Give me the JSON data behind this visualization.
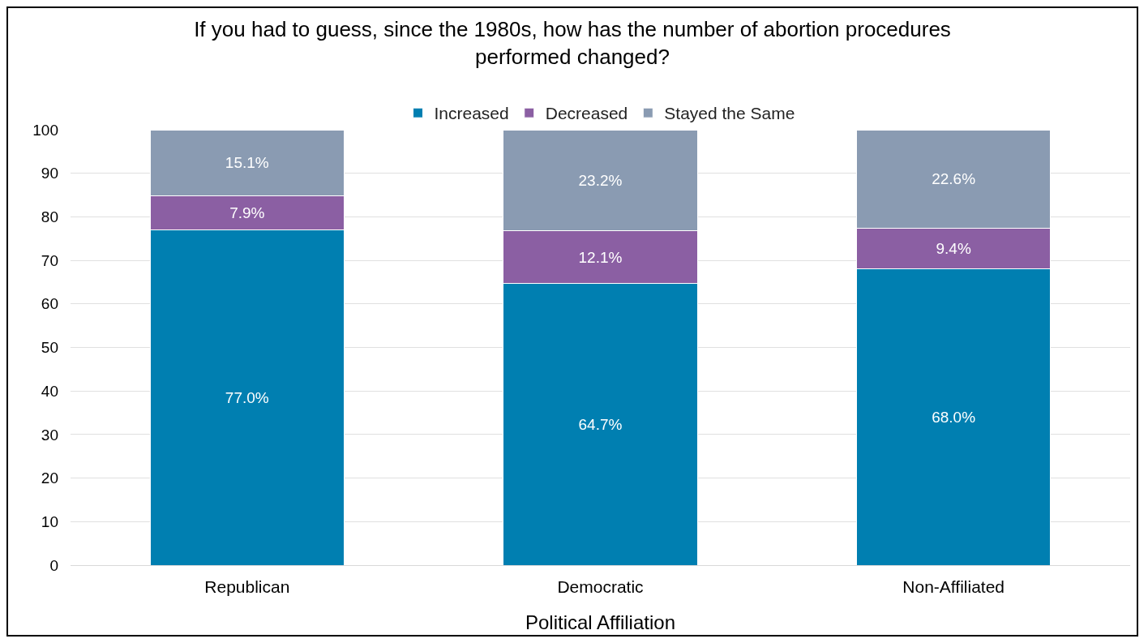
{
  "chart_data": {
    "type": "bar",
    "title": "If you had to guess, since the 1980s, how has the number of abortion procedures performed changed?",
    "xlabel": "Political Affiliation",
    "categories": [
      "Republican",
      "Democratic",
      "Non-Affiliated"
    ],
    "series": [
      {
        "name": "Increased",
        "color": "#007fb1",
        "values": [
          77.0,
          64.7,
          68.0
        ],
        "value_labels": [
          "77.0%",
          "64.7%",
          "68.0%"
        ]
      },
      {
        "name": "Decreased",
        "color": "#8b5fa3",
        "values": [
          7.9,
          12.1,
          9.4
        ],
        "value_labels": [
          "7.9%",
          "12.1%",
          "9.4%"
        ]
      },
      {
        "name": "Stayed the Same",
        "color": "#8a9bb2",
        "values": [
          15.1,
          23.2,
          22.6
        ],
        "value_labels": [
          "15.1%",
          "23.2%",
          "22.6%"
        ]
      }
    ],
    "stacked": true,
    "ylim": [
      0,
      100
    ],
    "yticks": [
      0,
      10,
      20,
      30,
      40,
      50,
      60,
      70,
      80,
      90,
      100
    ],
    "grid": "y",
    "legend": "top"
  }
}
